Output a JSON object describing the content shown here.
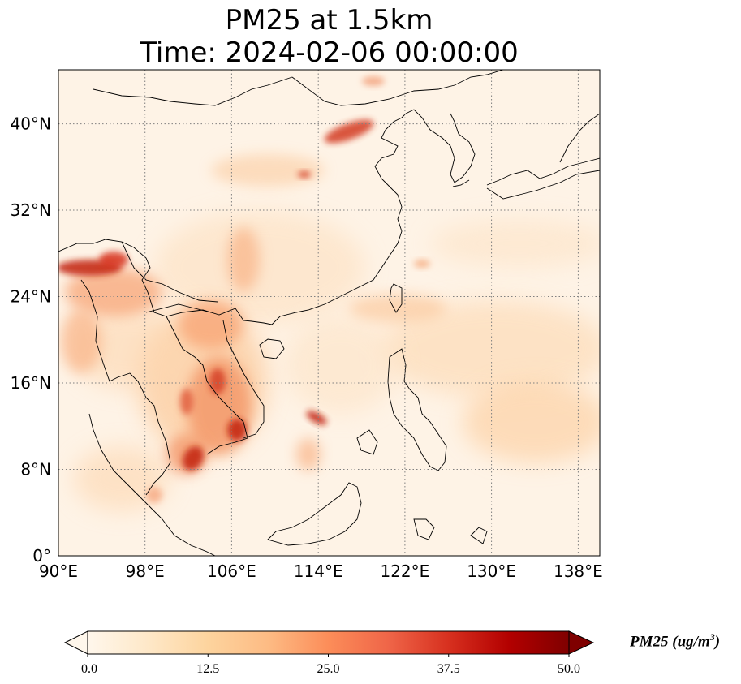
{
  "title": {
    "line1": "PM25 at 1.5km",
    "line2": "Time: 2024-02-06 00:00:00"
  },
  "map": {
    "extent": {
      "lon": [
        90,
        140
      ],
      "lat": [
        0,
        45
      ]
    },
    "x_ticks": [
      "90°E",
      "98°E",
      "106°E",
      "114°E",
      "122°E",
      "130°E",
      "138°E"
    ],
    "x_tick_lons": [
      90,
      98,
      106,
      114,
      122,
      130,
      138
    ],
    "y_ticks": [
      "0°",
      "8°N",
      "16°N",
      "24°N",
      "32°N",
      "40°N"
    ],
    "y_tick_lats": [
      0,
      8,
      16,
      24,
      32,
      40
    ],
    "gridlines": true,
    "gridline_style": "dotted"
  },
  "colorbar": {
    "label": "PM25 (ug/m",
    "label_sup": "3",
    "label_close": ")",
    "ticks": [
      "0.0",
      "12.5",
      "25.0",
      "37.5",
      "50.0"
    ],
    "vmin": 0,
    "vmax": 50,
    "extend": "both",
    "colormap": "OrRd",
    "colors": [
      "#fff7ec",
      "#fee8c8",
      "#fdd49e",
      "#fdbb84",
      "#fc8d59",
      "#ef6548",
      "#d7301f",
      "#b30000",
      "#7f0000"
    ]
  }
}
